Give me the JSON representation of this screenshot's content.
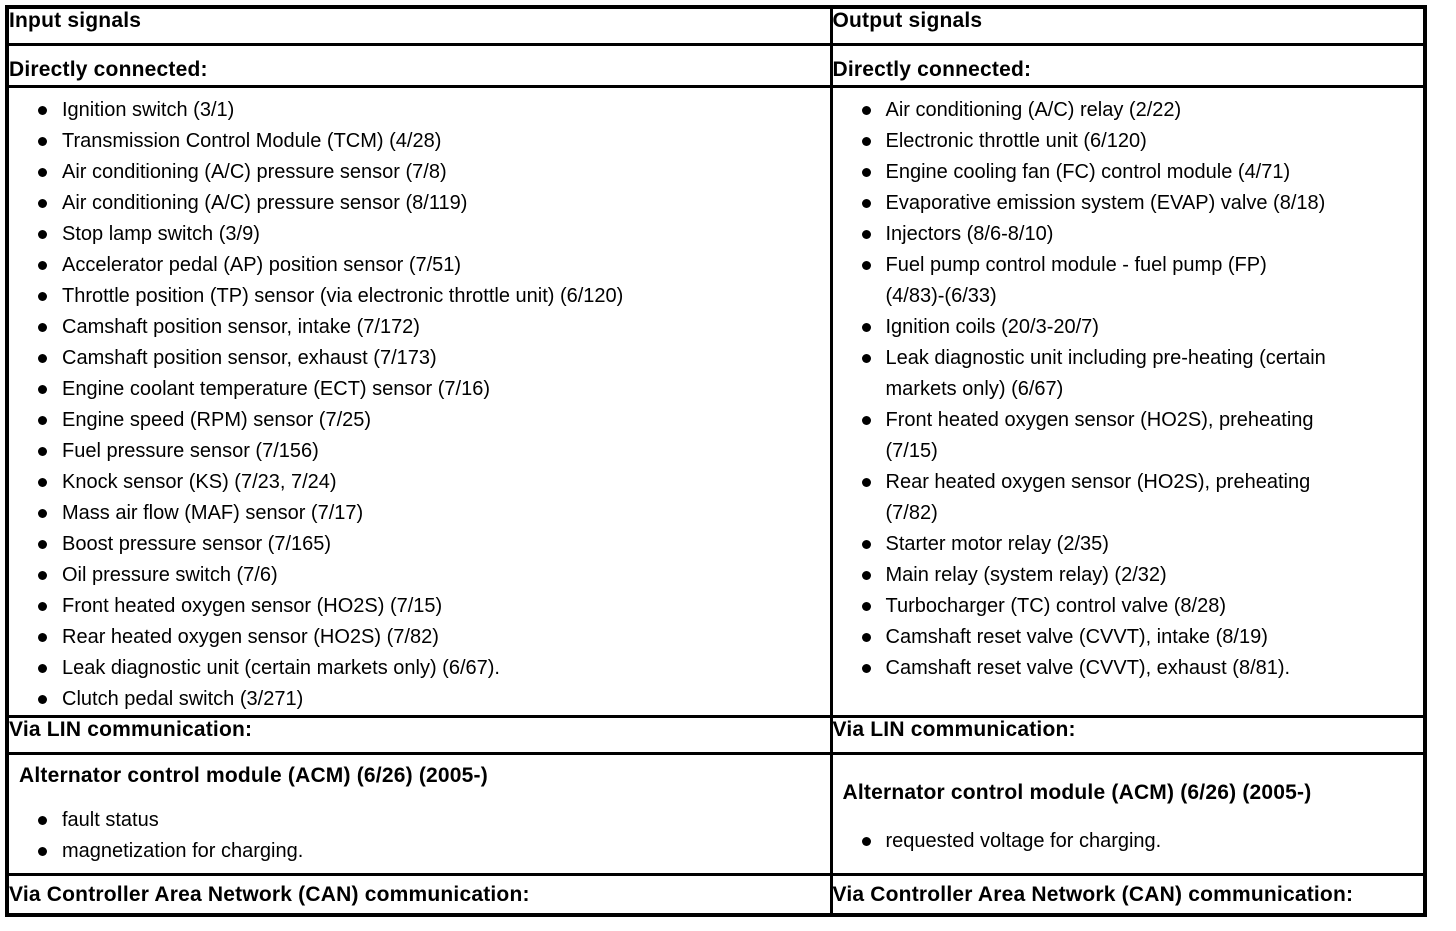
{
  "colors": {
    "text": "#000000",
    "background": "#ffffff",
    "border": "#000000"
  },
  "table": {
    "columns": [
      {
        "header": "Input signals",
        "directly_connected_label": "Directly connected:",
        "directly_connected_items": [
          "Ignition switch (3/1)",
          "Transmission Control Module (TCM) (4/28)",
          "Air conditioning (A/C) pressure sensor (7/8)",
          "Air conditioning (A/C) pressure sensor (8/119)",
          "Stop lamp switch (3/9)",
          "Accelerator pedal (AP) position sensor (7/51)",
          "Throttle position (TP) sensor (via electronic throttle unit) (6/120)",
          "Camshaft position sensor, intake (7/172)",
          "Camshaft position sensor, exhaust (7/173)",
          "Engine coolant temperature (ECT) sensor (7/16)",
          "Engine speed (RPM) sensor (7/25)",
          "Fuel pressure sensor (7/156)",
          "Knock sensor (KS) (7/23, 7/24)",
          "Mass air flow (MAF) sensor (7/17)",
          "Boost pressure sensor (7/165)",
          "Oil pressure switch (7/6)",
          "Front heated oxygen sensor (HO2S) (7/15)",
          "Rear heated oxygen sensor (HO2S) (7/82)",
          "Leak diagnostic unit (certain markets only) (6/67).",
          "Clutch pedal switch (3/271)"
        ],
        "via_lin_label": "Via LIN communication:",
        "lin_module_heading": "Alternator control module (ACM) (6/26) (2005-)",
        "lin_module_items": [
          "fault status",
          "magnetization for charging."
        ],
        "via_can_label": "Via Controller Area Network (CAN) communication:"
      },
      {
        "header": "Output signals",
        "directly_connected_label": "Directly connected:",
        "directly_connected_items": [
          "Air conditioning (A/C) relay (2/22)",
          "Electronic throttle unit (6/120)",
          "Engine cooling fan (FC) control module (4/71)",
          "Evaporative emission system (EVAP) valve (8/18)",
          "Injectors (8/6-8/10)",
          "Fuel pump control module - fuel pump (FP)\n(4/83)-(6/33)",
          "Ignition coils (20/3-20/7)",
          "Leak diagnostic unit including pre-heating (certain\nmarkets only) (6/67)",
          "Front heated oxygen sensor (HO2S), preheating\n(7/15)",
          "Rear heated oxygen sensor (HO2S), preheating\n(7/82)",
          "Starter motor relay (2/35)",
          "Main relay (system relay) (2/32)",
          "Turbocharger (TC) control valve (8/28)",
          "Camshaft reset valve (CVVT), intake (8/19)",
          "Camshaft reset valve (CVVT), exhaust (8/81)."
        ],
        "via_lin_label": "Via LIN communication:",
        "lin_module_heading": "Alternator control module (ACM) (6/26) (2005-)",
        "lin_module_items": [
          "requested voltage for charging."
        ],
        "via_can_label": "Via Controller Area Network (CAN) communication:"
      }
    ]
  }
}
